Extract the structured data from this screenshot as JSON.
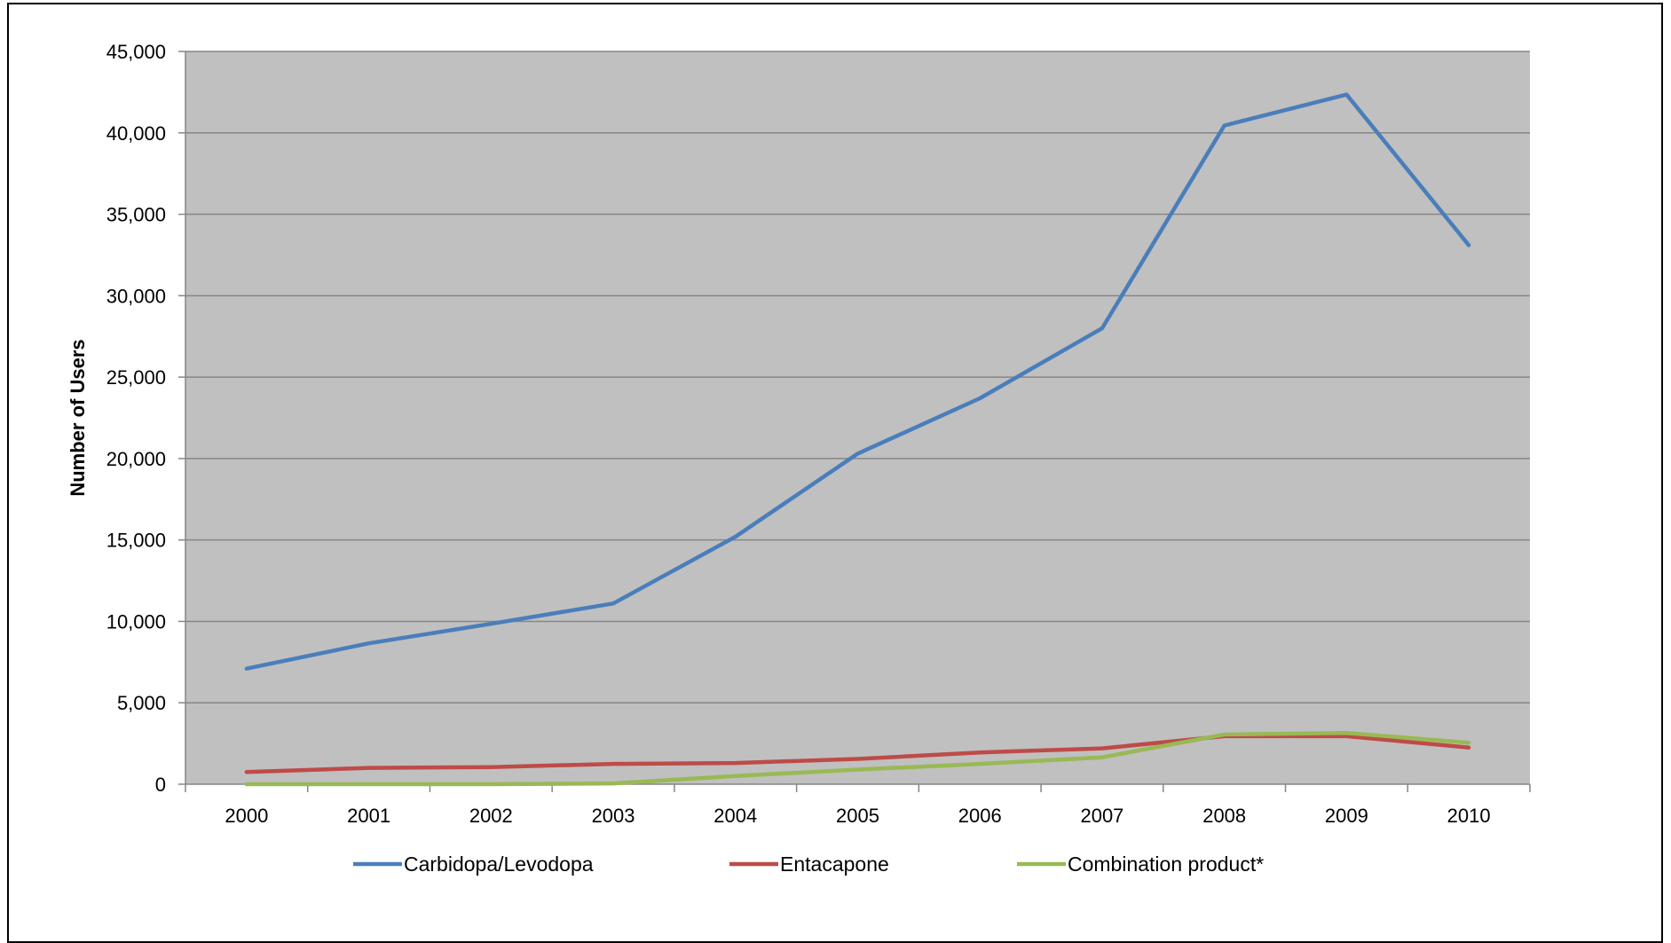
{
  "chart_data": {
    "type": "line",
    "title": "",
    "xlabel": "",
    "ylabel": "Number of Users",
    "categories": [
      "2000",
      "2001",
      "2002",
      "2003",
      "2004",
      "2005",
      "2006",
      "2007",
      "2008",
      "2009",
      "2010"
    ],
    "ylim": [
      0,
      45000
    ],
    "yticks": [
      0,
      5000,
      10000,
      15000,
      20000,
      25000,
      30000,
      35000,
      40000,
      45000
    ],
    "ytick_labels": [
      "0",
      "5,000",
      "10,000",
      "15,000",
      "20,000",
      "25,000",
      "30,000",
      "35,000",
      "40,000",
      "45,000"
    ],
    "grid": true,
    "legend_position": "bottom",
    "plot_background": "#c0c0c0",
    "series": [
      {
        "name": "Carbidopa/Levodopa",
        "color": "#4a7ebb",
        "values": [
          7100,
          8650,
          9850,
          11100,
          15200,
          20300,
          23700,
          28000,
          40450,
          42350,
          33100
        ]
      },
      {
        "name": "Entacapone",
        "color": "#be4b48",
        "values": [
          750,
          1000,
          1050,
          1250,
          1300,
          1550,
          1950,
          2200,
          2950,
          2950,
          2250
        ]
      },
      {
        "name": "Combination product*",
        "color": "#98b954",
        "values": [
          0,
          0,
          0,
          50,
          500,
          900,
          1250,
          1650,
          3050,
          3150,
          2550
        ]
      }
    ]
  }
}
